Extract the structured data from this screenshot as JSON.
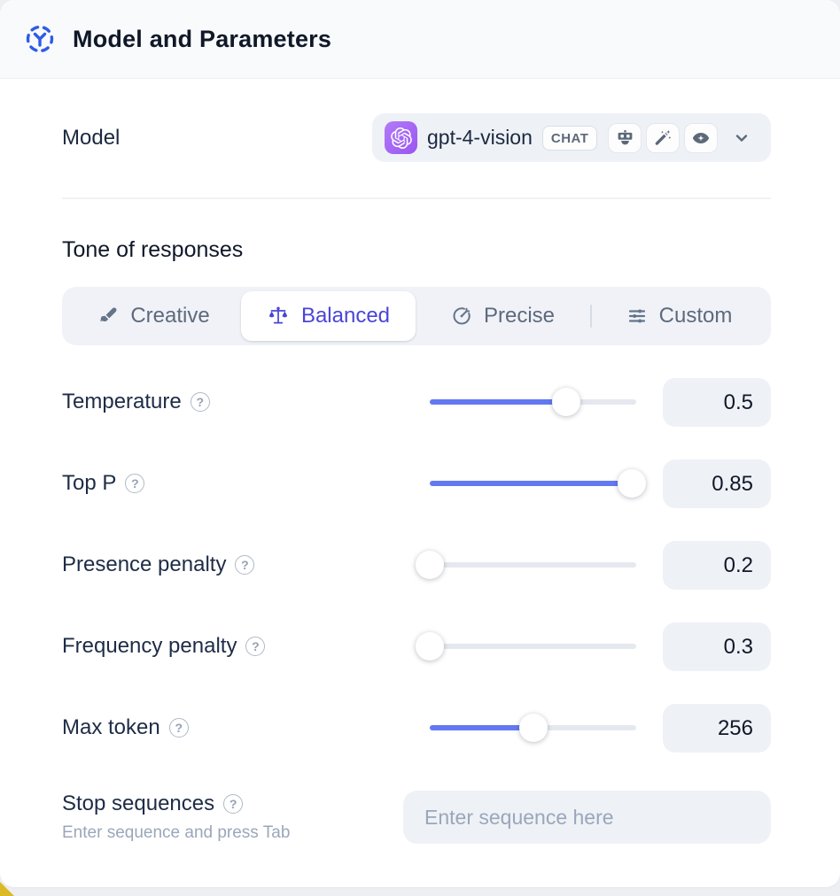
{
  "header": {
    "title": "Model and Parameters",
    "icon": "model-hub-icon",
    "accent_blue": "#2e5be6"
  },
  "model_row": {
    "label": "Model",
    "selector": {
      "value": "gpt-4-vision",
      "provider_icon": "openai-logo",
      "provider_color": "#9a55f2",
      "badge": "CHAT",
      "capability_icons": [
        "robot-icon",
        "magic-wand-icon",
        "eye-icon"
      ],
      "chevron_icon": "chevron-down-icon"
    }
  },
  "tone": {
    "heading": "Tone of responses",
    "tabs": [
      {
        "label": "Creative",
        "icon": "paintbrush-icon",
        "selected": false
      },
      {
        "label": "Balanced",
        "icon": "balance-scale-icon",
        "selected": true
      },
      {
        "label": "Precise",
        "icon": "target-icon",
        "selected": false
      },
      {
        "label": "Custom",
        "icon": "sliders-icon",
        "selected": false
      }
    ],
    "selected_color": "#4a45d6"
  },
  "parameters": [
    {
      "label": "Temperature",
      "value": "0.5",
      "slider_percent": 66,
      "help_icon": true
    },
    {
      "label": "Top P",
      "value": "0.85",
      "slider_percent": 98,
      "help_icon": true
    },
    {
      "label": "Presence penalty",
      "value": "0.2",
      "slider_percent": 0,
      "help_icon": true
    },
    {
      "label": "Frequency penalty",
      "value": "0.3",
      "slider_percent": 0,
      "help_icon": true
    },
    {
      "label": "Max token",
      "value": "256",
      "slider_percent": 50,
      "help_icon": true
    }
  ],
  "slider_color": "#6379f2",
  "stop_sequences": {
    "label": "Stop sequences",
    "hint": "Enter sequence and press Tab",
    "placeholder": "Enter sequence here",
    "help_icon": true
  }
}
